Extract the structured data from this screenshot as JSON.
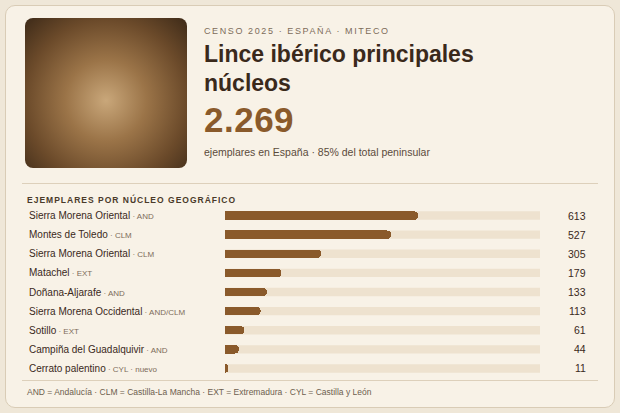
{
  "header": {
    "kicker": "CENSO 2025 · ESPAÑA · MITECO",
    "title": "Lince ibérico principales núcleos",
    "total": "2.269",
    "total_note": "ejemplares en España · 85% del total peninsular"
  },
  "chart_data": {
    "type": "bar",
    "orientation": "horizontal",
    "title": "EJEMPLARES POR NÚCLEO GEOGRÁFICO",
    "categories": [
      "Sierra Morena Oriental · AND",
      "Montes de Toledo · CLM",
      "Sierra Morena Oriental · CLM",
      "Matachel · EXT",
      "Doñana-Aljarafe · AND",
      "Sierra Morena Occidental · AND/CLM",
      "Sotillo · EXT",
      "Campiña del Guadalquivir · AND",
      "Cerrato palentino · CYL · nuevo"
    ],
    "values": [
      613,
      527,
      305,
      179,
      133,
      113,
      61,
      44,
      11
    ],
    "color": "#8a5a2b",
    "xlim": [
      0,
      1000
    ],
    "grid": false,
    "data_labels": true,
    "tick_labels": "y"
  },
  "footnote": "AND = Andalucía · CLM = Castilla-La Mancha · EXT = Extremadura · CYL = Castilla y León"
}
